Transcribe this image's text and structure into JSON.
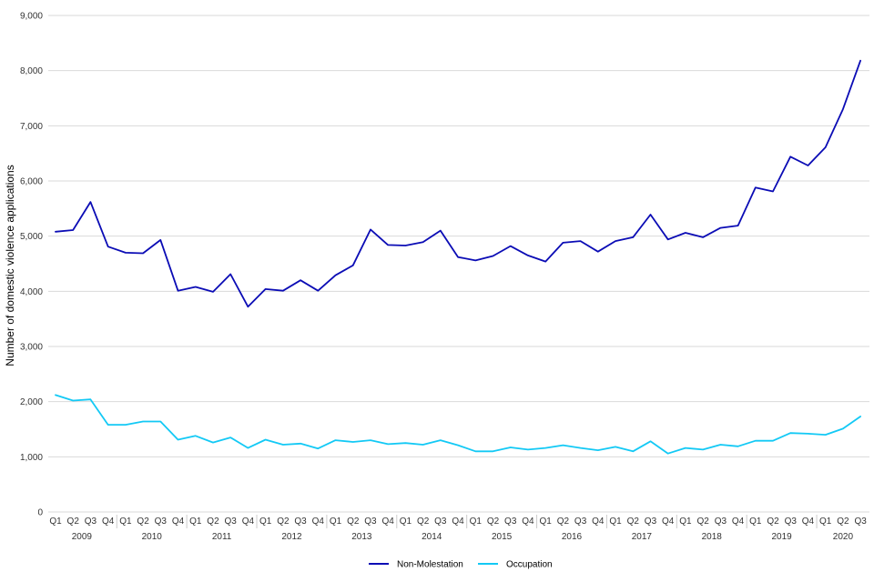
{
  "chart_data": {
    "type": "line",
    "title": "",
    "xlabel": "",
    "ylabel": "Number of domestic violence applications",
    "ylim": [
      0,
      9000
    ],
    "y_ticks": [
      0,
      1000,
      2000,
      3000,
      4000,
      5000,
      6000,
      7000,
      8000,
      9000
    ],
    "y_tick_labels": [
      "0",
      "1,000",
      "2,000",
      "3,000",
      "4,000",
      "5,000",
      "6,000",
      "7,000",
      "8,000",
      "9,000"
    ],
    "grid": "horizontal",
    "legend_position": "bottom-center",
    "years": [
      "2009",
      "2010",
      "2011",
      "2012",
      "2013",
      "2014",
      "2015",
      "2016",
      "2017",
      "2018",
      "2019",
      "2020"
    ],
    "x": [
      "Q1",
      "Q2",
      "Q3",
      "Q4",
      "Q1",
      "Q2",
      "Q3",
      "Q4",
      "Q1",
      "Q2",
      "Q3",
      "Q4",
      "Q1",
      "Q2",
      "Q3",
      "Q4",
      "Q1",
      "Q2",
      "Q3",
      "Q4",
      "Q1",
      "Q2",
      "Q3",
      "Q4",
      "Q1",
      "Q2",
      "Q3",
      "Q4",
      "Q1",
      "Q2",
      "Q3",
      "Q4",
      "Q1",
      "Q2",
      "Q3",
      "Q4",
      "Q1",
      "Q2",
      "Q3",
      "Q4",
      "Q1",
      "Q2",
      "Q3",
      "Q4",
      "Q1",
      "Q2",
      "Q3"
    ],
    "series": [
      {
        "name": "Non-Molestation",
        "color": "#0b0cb5",
        "values": [
          5080,
          5110,
          5620,
          4810,
          4700,
          4690,
          4930,
          4010,
          4080,
          3990,
          4310,
          3720,
          4040,
          4010,
          4200,
          4010,
          4290,
          4470,
          5120,
          4840,
          4830,
          4890,
          5100,
          4620,
          4560,
          4640,
          4820,
          4650,
          4540,
          4880,
          4910,
          4720,
          4910,
          4980,
          5390,
          4940,
          5060,
          4980,
          5150,
          5190,
          5880,
          5810,
          6440,
          6280,
          6610,
          7300,
          8180
        ]
      },
      {
        "name": "Occupation",
        "color": "#13c9f5",
        "values": [
          2120,
          2020,
          2040,
          1580,
          1580,
          1640,
          1640,
          1310,
          1380,
          1260,
          1350,
          1160,
          1310,
          1220,
          1240,
          1150,
          1300,
          1270,
          1300,
          1230,
          1250,
          1220,
          1300,
          1210,
          1100,
          1100,
          1170,
          1130,
          1160,
          1210,
          1160,
          1120,
          1180,
          1100,
          1280,
          1060,
          1160,
          1130,
          1220,
          1190,
          1290,
          1290,
          1430,
          1420,
          1400,
          1510,
          1730
        ]
      }
    ]
  }
}
